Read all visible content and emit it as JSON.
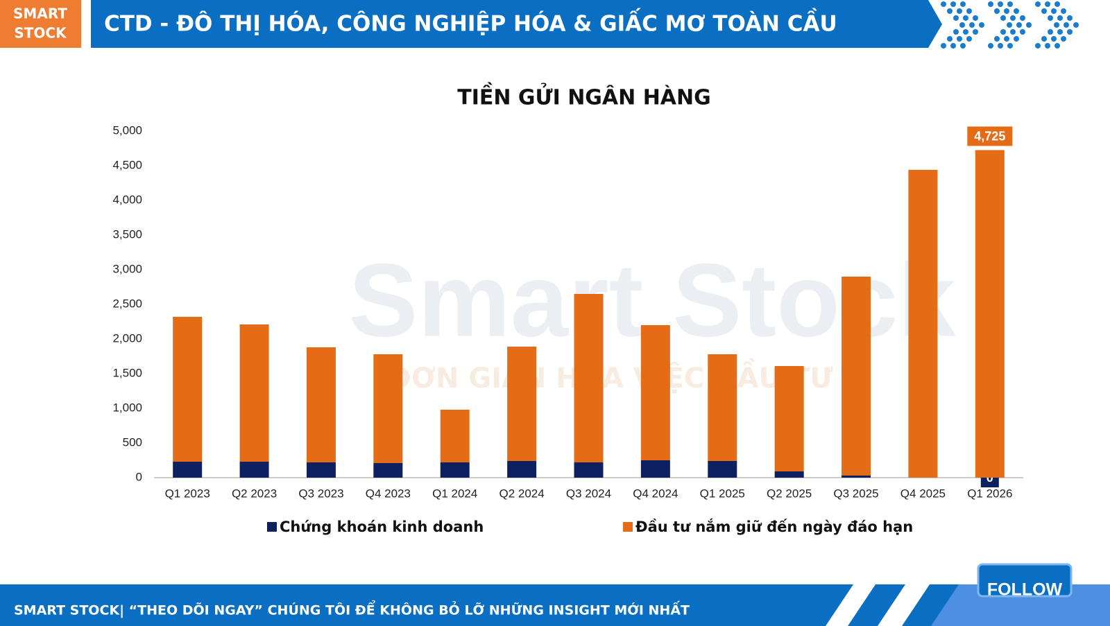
{
  "brand": [
    "SMART",
    "STOCK"
  ],
  "header_title": "CTD - ĐÔ THỊ HÓA, CÔNG NGHIỆP HÓA & GIẤC MƠ TOÀN CẦU",
  "watermark": {
    "name": "Smart Stock",
    "slogan": "ĐƠN GIẢN HÓA VIỆC ĐẦU TƯ"
  },
  "chart_data": {
    "type": "stacked_bar",
    "title": "TIỀN GỬI NGÂN HÀNG",
    "categories": [
      "Q1 2023",
      "Q2 2023",
      "Q3 2023",
      "Q4 2023",
      "Q1 2024",
      "Q2 2024",
      "Q3 2024",
      "Q4 2024",
      "Q1 2025",
      "Q2 2025",
      "Q3 2025",
      "Q4 2025",
      "Q1 2026"
    ],
    "series": [
      {
        "name": "Chứng khoán kinh doanh",
        "color": "#0d2160",
        "values": [
          230,
          230,
          220,
          210,
          220,
          240,
          220,
          250,
          240,
          90,
          30,
          0,
          0
        ],
        "value_labels": [
          null,
          null,
          null,
          null,
          null,
          null,
          null,
          null,
          null,
          null,
          null,
          null,
          "0"
        ]
      },
      {
        "name": "Đầu tư nắm giữ đến ngày đáo hạn",
        "color": "#e46c17",
        "values": [
          2090,
          1980,
          1660,
          1570,
          760,
          1650,
          2430,
          1950,
          1540,
          1520,
          2870,
          4440,
          4725
        ],
        "value_labels": [
          null,
          null,
          null,
          null,
          null,
          null,
          null,
          null,
          null,
          null,
          null,
          null,
          "4,725"
        ]
      }
    ],
    "ylim": [
      0,
      5000
    ],
    "yticks": [
      0,
      500,
      {
        "value": 1000,
        "label": "1,000"
      },
      {
        "value": 1500,
        "label": "1,500"
      },
      {
        "value": 2000,
        "label": "2,000"
      },
      {
        "value": 2500,
        "label": "2,500"
      },
      {
        "value": 3000,
        "label": "3,000"
      },
      {
        "value": 3500,
        "label": "3,500"
      },
      {
        "value": 4000,
        "label": "4,000"
      },
      {
        "value": 4500,
        "label": "4,500"
      },
      {
        "value": 5000,
        "label": "5,000"
      }
    ],
    "legend": "bottom"
  },
  "footer": "SMART STOCK| “THEO DÕI NGAY” CHÚNG TÔI ĐỂ KHÔNG BỎ LỠ NHỮNG INSIGHT MỚI NHẤT",
  "follow_button": "FOLLOW"
}
